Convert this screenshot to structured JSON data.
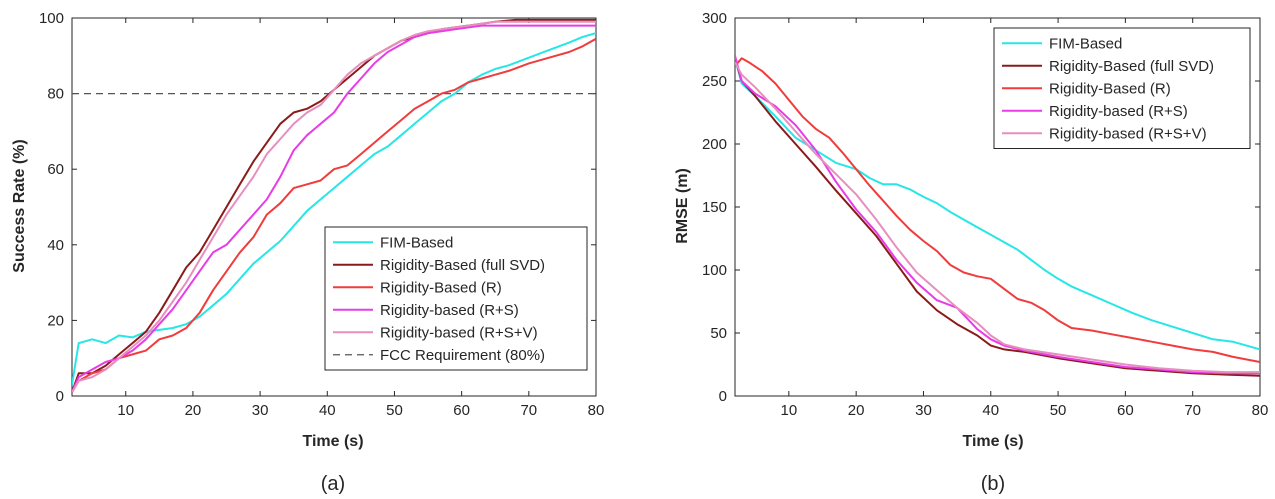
{
  "chart_data": [
    {
      "id": "a",
      "type": "line",
      "caption": "(a)",
      "xlabel": "Time (s)",
      "ylabel": "Success Rate (%)",
      "xlim": [
        2,
        80
      ],
      "ylim": [
        0,
        100
      ],
      "xticks": [
        10,
        20,
        30,
        40,
        50,
        60,
        70,
        80
      ],
      "yticks": [
        0,
        20,
        40,
        60,
        80,
        100
      ],
      "legend_position": "bottom-right",
      "series": [
        {
          "name": "FIM-Based",
          "color": "#27e6e6",
          "x": [
            2,
            3,
            5,
            7,
            9,
            11,
            13,
            15,
            17,
            19,
            21,
            23,
            25,
            27,
            29,
            31,
            33,
            35,
            37,
            39,
            41,
            43,
            45,
            47,
            49,
            51,
            53,
            55,
            57,
            59,
            61,
            63,
            65,
            67,
            70,
            73,
            76,
            78,
            80
          ],
          "y": [
            3,
            14,
            15,
            14,
            16,
            15.5,
            17,
            17.5,
            18,
            19,
            21,
            24,
            27,
            31,
            35,
            38,
            41,
            45,
            49,
            52,
            55,
            58,
            61,
            64,
            66,
            69,
            72,
            75,
            78,
            80,
            83,
            85,
            86.5,
            87.5,
            89.5,
            91.5,
            93.5,
            95,
            96
          ]
        },
        {
          "name": "Rigidity-Based (full SVD)",
          "color": "#8b1a1a",
          "x": [
            2,
            3,
            5,
            7,
            9,
            11,
            13,
            15,
            17,
            19,
            21,
            23,
            25,
            27,
            29,
            31,
            33,
            35,
            37,
            39,
            41,
            43,
            45,
            47,
            49,
            51,
            53,
            55,
            57,
            59,
            61,
            63,
            65,
            68,
            72,
            76,
            80
          ],
          "y": [
            1,
            6,
            6,
            8,
            11,
            14,
            17,
            22,
            28,
            34,
            38,
            44,
            50,
            56,
            62,
            67,
            72,
            75,
            76,
            78,
            81,
            84,
            87,
            90,
            92,
            94,
            95,
            96,
            97,
            97.5,
            98,
            98.5,
            99,
            99.5,
            99.5,
            99.5,
            99.5
          ]
        },
        {
          "name": "Rigidity-Based (R)",
          "color": "#f03c3c",
          "x": [
            2,
            3,
            5,
            7,
            9,
            11,
            13,
            15,
            17,
            19,
            21,
            23,
            25,
            27,
            29,
            31,
            33,
            35,
            37,
            39,
            41,
            43,
            45,
            47,
            49,
            51,
            53,
            55,
            57,
            59,
            61,
            63,
            65,
            67,
            70,
            73,
            76,
            78,
            80
          ],
          "y": [
            1,
            4,
            6,
            7,
            10,
            11,
            12,
            15,
            16,
            18,
            22,
            28,
            33,
            38,
            42,
            48,
            51,
            55,
            56,
            57,
            60,
            61,
            64,
            67,
            70,
            73,
            76,
            78,
            80,
            81,
            83,
            84,
            85,
            86,
            88,
            89.5,
            91,
            92.5,
            94.5
          ]
        },
        {
          "name": "Rigidity-based (R+S)",
          "color": "#e83ce8",
          "x": [
            2,
            3,
            5,
            7,
            9,
            11,
            13,
            15,
            17,
            19,
            21,
            23,
            25,
            27,
            29,
            31,
            33,
            35,
            37,
            39,
            41,
            43,
            45,
            47,
            49,
            51,
            53,
            55,
            57,
            59,
            61,
            63,
            66,
            70,
            75,
            80
          ],
          "y": [
            1,
            5,
            7,
            9,
            10,
            12,
            15,
            19,
            23,
            28,
            33,
            38,
            40,
            44,
            48,
            52,
            58,
            65,
            69,
            72,
            75,
            80,
            84,
            88,
            91,
            93,
            95,
            96,
            96.5,
            97,
            97.5,
            98,
            98,
            98,
            98,
            98
          ]
        },
        {
          "name": "Rigidity-based (R+S+V)",
          "color": "#e68fbe",
          "x": [
            2,
            3,
            5,
            7,
            9,
            11,
            13,
            15,
            17,
            19,
            21,
            23,
            25,
            27,
            29,
            31,
            33,
            35,
            37,
            39,
            41,
            43,
            45,
            47,
            49,
            51,
            53,
            55,
            57,
            59,
            61,
            63,
            65,
            68,
            72,
            76,
            80
          ],
          "y": [
            1,
            4,
            5,
            7,
            10,
            13,
            16,
            20,
            25,
            30,
            36,
            42,
            48,
            53,
            58,
            64,
            68,
            72,
            75,
            77,
            81,
            85,
            88,
            90,
            92,
            94,
            95.5,
            96.5,
            97,
            97.5,
            98,
            98.5,
            99,
            99,
            99,
            99,
            99
          ]
        }
      ],
      "reference_line": {
        "name": "FCC Requirement (80%)",
        "y": 80,
        "color": "#555555",
        "style": "dashed"
      }
    },
    {
      "id": "b",
      "type": "line",
      "caption": "(b)",
      "xlabel": "Time (s)",
      "ylabel": "RMSE (m)",
      "xlim": [
        2,
        80
      ],
      "ylim": [
        0,
        300
      ],
      "xticks": [
        10,
        20,
        30,
        40,
        50,
        60,
        70,
        80
      ],
      "yticks": [
        0,
        50,
        100,
        150,
        200,
        250,
        300
      ],
      "legend_position": "top-right",
      "series": [
        {
          "name": "FIM-Based",
          "color": "#27e6e6",
          "x": [
            2,
            3,
            5,
            8,
            11,
            14,
            17,
            20,
            22,
            24,
            26,
            28,
            30,
            32,
            34,
            36,
            38,
            40,
            42,
            44,
            46,
            48,
            50,
            52,
            55,
            58,
            61,
            64,
            67,
            70,
            73,
            76,
            78,
            80
          ],
          "y": [
            268,
            248,
            238,
            222,
            205,
            195,
            185,
            180,
            173,
            168,
            168,
            164,
            158,
            153,
            146,
            140,
            134,
            128,
            122,
            116,
            108,
            100,
            93,
            87,
            80,
            73,
            66,
            60,
            55,
            50,
            45,
            43,
            40,
            37
          ]
        },
        {
          "name": "Rigidity-Based (full SVD)",
          "color": "#8b1a1a",
          "x": [
            2,
            3,
            5,
            8,
            11,
            14,
            17,
            20,
            23,
            26,
            29,
            32,
            35,
            38,
            40,
            42,
            45,
            50,
            55,
            60,
            65,
            70,
            75,
            80
          ],
          "y": [
            268,
            250,
            238,
            218,
            200,
            182,
            163,
            145,
            127,
            105,
            83,
            68,
            57,
            48,
            40,
            37,
            35,
            30,
            26,
            22,
            20,
            18,
            17,
            16
          ]
        },
        {
          "name": "Rigidity-Based (R)",
          "color": "#f03c3c",
          "x": [
            2,
            3,
            4,
            6,
            8,
            10,
            12,
            14,
            16,
            18,
            20,
            22,
            24,
            26,
            28,
            30,
            32,
            34,
            36,
            38,
            40,
            42,
            44,
            46,
            48,
            50,
            52,
            55,
            58,
            61,
            64,
            67,
            70,
            73,
            76,
            80
          ],
          "y": [
            262,
            268,
            265,
            258,
            248,
            235,
            222,
            212,
            205,
            193,
            180,
            167,
            155,
            143,
            132,
            123,
            115,
            104,
            98,
            95,
            93,
            85,
            77,
            74,
            68,
            60,
            54,
            52,
            49,
            46,
            43,
            40,
            37,
            35,
            31,
            27
          ]
        },
        {
          "name": "Rigidity-based (R+S)",
          "color": "#e83ce8",
          "x": [
            2,
            3,
            5,
            8,
            11,
            14,
            17,
            20,
            23,
            26,
            29,
            32,
            35,
            38,
            40,
            42,
            45,
            50,
            55,
            60,
            65,
            70,
            75,
            80
          ],
          "y": [
            270,
            250,
            240,
            230,
            215,
            195,
            170,
            148,
            130,
            108,
            90,
            76,
            70,
            53,
            45,
            40,
            36,
            31,
            27,
            23,
            21,
            19,
            18,
            18
          ]
        },
        {
          "name": "Rigidity-based (R+S+V)",
          "color": "#e68fbe",
          "x": [
            2,
            3,
            5,
            8,
            11,
            14,
            17,
            20,
            23,
            26,
            29,
            32,
            35,
            38,
            40,
            42,
            45,
            50,
            55,
            60,
            65,
            70,
            75,
            80
          ],
          "y": [
            265,
            255,
            245,
            228,
            210,
            192,
            176,
            160,
            140,
            118,
            98,
            84,
            70,
            58,
            48,
            41,
            37,
            33,
            29,
            25,
            22,
            20,
            19,
            19
          ]
        }
      ]
    }
  ]
}
